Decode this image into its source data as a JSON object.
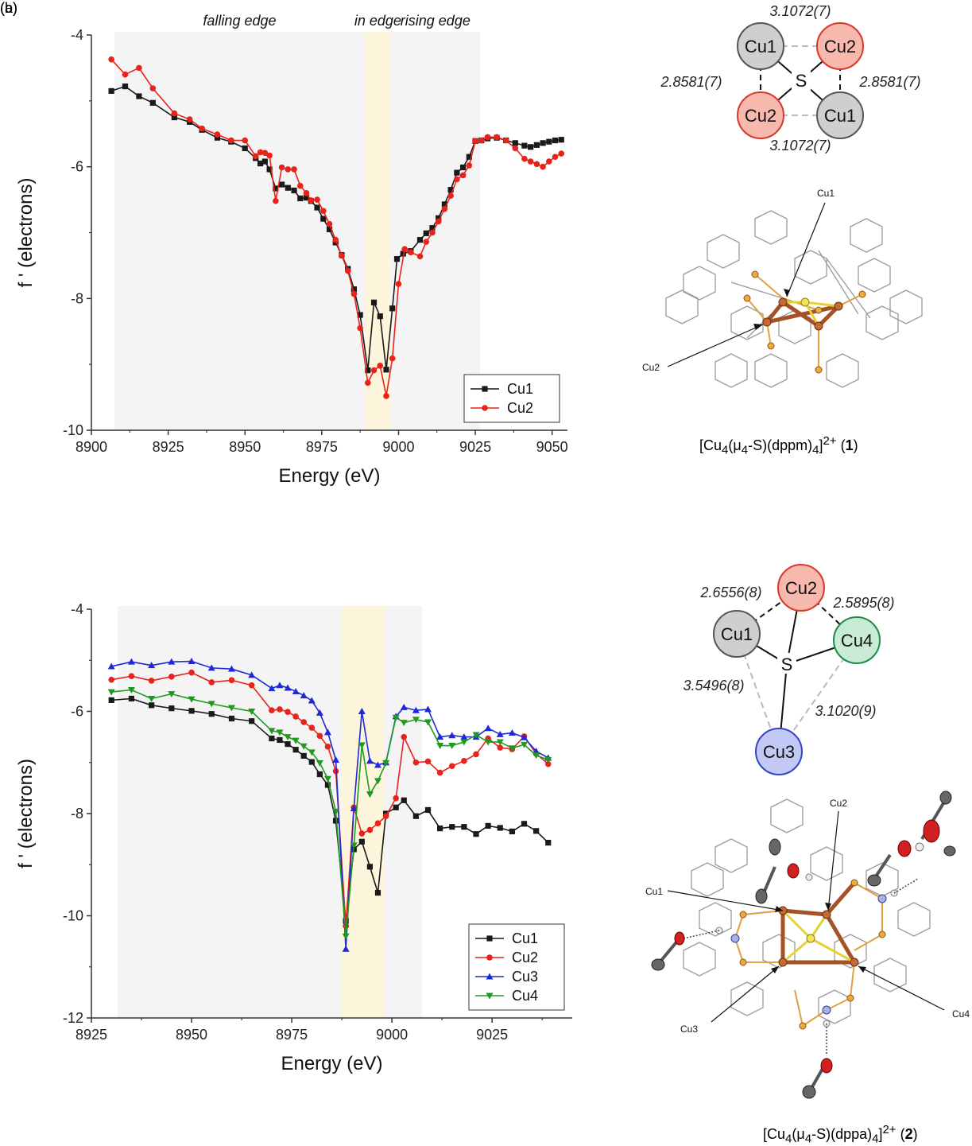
{
  "panel_labels": {
    "a": "(a)",
    "b": "(b)"
  },
  "colors": {
    "Cu1": "#1a1a1a",
    "Cu2": "#e8231c",
    "Cu3": "#1f28d6",
    "Cu4": "#1e9a1e",
    "band_gray": "#f4f4f4",
    "band_yellow": "#fdf6dc"
  },
  "chart_data": [
    {
      "type": "line",
      "panel": "a",
      "xlabel": "Energy (eV)",
      "ylabel": "f ' (electrons)",
      "xlim": [
        8900,
        9055
      ],
      "ylim": [
        -10,
        -4
      ],
      "xticks": [
        8900,
        8925,
        8950,
        8975,
        9000,
        9025,
        9050
      ],
      "yticks": [
        -10,
        -8,
        -6,
        -4
      ],
      "regions": [
        {
          "label": "falling edge",
          "x0": 8907.5,
          "x1": 8989,
          "color": "gray"
        },
        {
          "label": "in edge",
          "x0": 8989,
          "x1": 8997.5,
          "color": "yellow"
        },
        {
          "label": "rising edge",
          "x0": 8997.5,
          "x1": 9026.5,
          "color": "gray"
        }
      ],
      "legend_position": "bottom-right",
      "series": [
        {
          "name": "Cu1",
          "color": "#1a1a1a",
          "marker": "square",
          "x": [
            8906.5,
            8911,
            8915.5,
            8920,
            8927,
            8932,
            8936,
            8941,
            8945.5,
            8950,
            8953.5,
            8955,
            8956.5,
            8958,
            8960,
            8962,
            8964,
            8966,
            8968,
            8970,
            8971.5,
            8973.5,
            8975.5,
            8977.5,
            8979.5,
            8981.5,
            8983.5,
            8985.5,
            8987.5,
            8990,
            8992,
            8994,
            8996,
            8998,
            8999.5,
            9001.5,
            9004,
            9007,
            9009,
            9011,
            9013,
            9015,
            9017,
            9019,
            9021,
            9023,
            9025,
            9027,
            9029,
            9032,
            9035,
            9038,
            9041,
            9043,
            9045,
            9047,
            9049,
            9051,
            9053
          ],
          "y": [
            -4.85,
            -4.78,
            -4.93,
            -5.03,
            -5.25,
            -5.32,
            -5.44,
            -5.56,
            -5.62,
            -5.72,
            -5.87,
            -5.95,
            -5.92,
            -6.04,
            -6.33,
            -6.27,
            -6.32,
            -6.36,
            -6.48,
            -6.47,
            -6.52,
            -6.62,
            -6.79,
            -6.95,
            -7.15,
            -7.34,
            -7.55,
            -7.86,
            -8.25,
            -9.09,
            -8.06,
            -8.27,
            -9.08,
            -8.15,
            -7.4,
            -7.32,
            -7.28,
            -7.11,
            -7.01,
            -6.93,
            -6.78,
            -6.57,
            -6.35,
            -6.09,
            -6.01,
            -5.85,
            -5.61,
            -5.6,
            -5.57,
            -5.56,
            -5.6,
            -5.64,
            -5.68,
            -5.7,
            -5.67,
            -5.64,
            -5.62,
            -5.6,
            -5.59
          ]
        },
        {
          "name": "Cu2",
          "color": "#e8231c",
          "marker": "circle",
          "x": [
            8906.5,
            8911,
            8915.5,
            8920,
            8927,
            8932,
            8936,
            8941,
            8945.5,
            8950,
            8953.5,
            8955,
            8956.5,
            8958,
            8960,
            8962,
            8964,
            8966,
            8968,
            8970,
            8971.5,
            8973.5,
            8975.5,
            8977.5,
            8979.5,
            8981.5,
            8983.5,
            8985.5,
            8987.5,
            8990,
            8992,
            8994,
            8996,
            8998,
            9000,
            9002,
            9004,
            9007,
            9009,
            9011,
            9013,
            9015,
            9017,
            9019,
            9021,
            9023,
            9025,
            9027,
            9029,
            9032,
            9035,
            9038,
            9041,
            9043,
            9045,
            9047,
            9049,
            9051,
            9053
          ],
          "y": [
            -4.37,
            -4.6,
            -4.5,
            -4.81,
            -5.19,
            -5.28,
            -5.42,
            -5.51,
            -5.6,
            -5.6,
            -5.84,
            -5.78,
            -5.79,
            -5.83,
            -6.52,
            -6.01,
            -6.04,
            -6.04,
            -6.29,
            -6.4,
            -6.51,
            -6.5,
            -6.67,
            -6.87,
            -7.11,
            -7.35,
            -7.58,
            -7.93,
            -8.45,
            -9.28,
            -9.09,
            -9.02,
            -9.48,
            -8.91,
            -7.78,
            -7.25,
            -7.3,
            -7.36,
            -7.14,
            -7.0,
            -6.83,
            -6.64,
            -6.44,
            -6.19,
            -6.13,
            -5.98,
            -5.61,
            -5.6,
            -5.55,
            -5.55,
            -5.6,
            -5.72,
            -5.88,
            -5.92,
            -5.96,
            -6.0,
            -5.92,
            -5.85,
            -5.8
          ]
        }
      ]
    },
    {
      "type": "line",
      "panel": "b",
      "xlabel": "Energy (eV)",
      "ylabel": "f ' (electrons)",
      "xlim": [
        8925,
        9045
      ],
      "ylim": [
        -12,
        -4
      ],
      "xticks": [
        8925,
        8950,
        8975,
        9000,
        9025
      ],
      "yticks": [
        -12,
        -10,
        -8,
        -6,
        -4
      ],
      "regions": [
        {
          "label": "",
          "x0": 8931.5,
          "x1": 8987.5,
          "color": "gray"
        },
        {
          "label": "",
          "x0": 8987.5,
          "x1": 8998,
          "color": "yellow"
        },
        {
          "label": "",
          "x0": 8998,
          "x1": 9007.5,
          "color": "gray"
        }
      ],
      "legend_position": "bottom-right",
      "series": [
        {
          "name": "Cu1",
          "color": "#1a1a1a",
          "marker": "square",
          "x": [
            8930,
            8935,
            8940,
            8945,
            8950,
            8955,
            8960,
            8965,
            8970,
            8972,
            8974,
            8976,
            8978,
            8980,
            8982,
            8984,
            8986,
            8988.5,
            8990.5,
            8992.5,
            8994.5,
            8996.5,
            8998.5,
            9001,
            9003,
            9006,
            9009,
            9012,
            9015,
            9018,
            9021,
            9024,
            9027,
            9030,
            9033,
            9036,
            9039
          ],
          "y": [
            -5.78,
            -5.75,
            -5.88,
            -5.94,
            -5.99,
            -6.05,
            -6.14,
            -6.19,
            -6.53,
            -6.56,
            -6.64,
            -6.75,
            -6.87,
            -6.99,
            -7.23,
            -7.44,
            -8.14,
            -10.1,
            -8.7,
            -8.55,
            -9.04,
            -9.55,
            -8.0,
            -7.88,
            -7.74,
            -8.05,
            -7.93,
            -8.29,
            -8.26,
            -8.26,
            -8.4,
            -8.24,
            -8.28,
            -8.35,
            -8.2,
            -8.34,
            -8.57
          ]
        },
        {
          "name": "Cu2",
          "color": "#e8231c",
          "marker": "circle",
          "x": [
            8930,
            8935,
            8940,
            8945,
            8950,
            8955,
            8960,
            8965,
            8970,
            8972,
            8974,
            8976,
            8978,
            8980,
            8982,
            8984,
            8986,
            8988.5,
            8990.5,
            8992.5,
            8994.5,
            8996.5,
            8998.5,
            9001,
            9003,
            9006,
            9009,
            9012,
            9015,
            9018,
            9021,
            9024,
            9027,
            9030,
            9033,
            9036,
            9039
          ],
          "y": [
            -5.38,
            -5.31,
            -5.4,
            -5.32,
            -5.24,
            -5.43,
            -5.39,
            -5.49,
            -5.98,
            -5.96,
            -6.01,
            -6.1,
            -6.21,
            -6.32,
            -6.48,
            -6.69,
            -7.17,
            -10.2,
            -7.88,
            -8.39,
            -8.32,
            -8.19,
            -8.05,
            -7.7,
            -6.5,
            -7.0,
            -6.98,
            -7.2,
            -7.07,
            -6.97,
            -6.84,
            -6.53,
            -6.71,
            -6.74,
            -6.49,
            -6.83,
            -7.03
          ]
        },
        {
          "name": "Cu3",
          "color": "#1f28d6",
          "marker": "triangle-up",
          "x": [
            8930,
            8935,
            8940,
            8945,
            8950,
            8955,
            8960,
            8965,
            8970,
            8972,
            8974,
            8976,
            8978,
            8980,
            8982,
            8984,
            8986,
            8988.5,
            8990.5,
            8992.5,
            8994.5,
            8996.5,
            8998.5,
            9001,
            9003,
            9006,
            9009,
            9012,
            9015,
            9018,
            9021,
            9024,
            9027,
            9030,
            9033,
            9036,
            9039
          ],
          "y": [
            -5.12,
            -5.03,
            -5.1,
            -5.03,
            -5.02,
            -5.15,
            -5.17,
            -5.29,
            -5.55,
            -5.49,
            -5.54,
            -5.61,
            -5.69,
            -5.79,
            -6.03,
            -6.41,
            -6.95,
            -10.65,
            -7.9,
            -6.0,
            -6.97,
            -7.05,
            -7.0,
            -6.1,
            -5.92,
            -5.98,
            -5.96,
            -6.5,
            -6.47,
            -6.5,
            -6.5,
            -6.33,
            -6.45,
            -6.42,
            -6.51,
            -6.78,
            -6.91
          ]
        },
        {
          "name": "Cu4",
          "color": "#1e9a1e",
          "marker": "triangle-down",
          "x": [
            8930,
            8935,
            8940,
            8945,
            8950,
            8955,
            8960,
            8965,
            8970,
            8972,
            8974,
            8976,
            8978,
            8980,
            8982,
            8984,
            8986,
            8988.5,
            8990.5,
            8992.5,
            8994.5,
            8996.5,
            8998.5,
            9001,
            9003,
            9006,
            9009,
            9012,
            9015,
            9018,
            9021,
            9024,
            9027,
            9030,
            9033,
            9036,
            9039
          ],
          "y": [
            -5.62,
            -5.58,
            -5.75,
            -5.66,
            -5.76,
            -5.85,
            -5.93,
            -6.0,
            -6.38,
            -6.41,
            -6.5,
            -6.57,
            -6.68,
            -6.8,
            -7.01,
            -7.32,
            -7.96,
            -10.4,
            -8.62,
            -6.66,
            -7.62,
            -7.36,
            -7.01,
            -6.12,
            -6.22,
            -6.16,
            -6.21,
            -6.67,
            -6.67,
            -6.6,
            -6.46,
            -6.6,
            -6.6,
            -6.72,
            -6.65,
            -6.86,
            -6.95
          ]
        }
      ]
    }
  ],
  "schematic_1": {
    "atoms": [
      "Cu1",
      "Cu2",
      "Cu2",
      "Cu1"
    ],
    "center": "S",
    "distances": {
      "top": "3.1072(7)",
      "bottom": "3.1072(7)",
      "left": "2.8581(7)",
      "right": "2.8581(7)"
    }
  },
  "structure_1": {
    "labels": {
      "cu1": "Cu1",
      "cu2": "Cu2"
    },
    "caption": {
      "pre": "[Cu",
      "sub1": "4",
      "mid1": "(μ",
      "sub2": "4",
      "mid2": "-S)(dppm)",
      "sub3": "4",
      "mid3": "]",
      "sup": "2+",
      "mid4": " (",
      "bold": "1",
      "end": ")"
    }
  },
  "schematic_2": {
    "atoms": {
      "a1": "Cu1",
      "a2": "Cu2",
      "a3": "Cu3",
      "a4": "Cu4"
    },
    "center": "S",
    "distances": {
      "cu1_cu2": "2.6556(8)",
      "cu2_cu4": "2.5895(8)",
      "cu1_cu3": "3.5496(8)",
      "cu4_cu3": "3.1020(9)"
    }
  },
  "structure_2": {
    "labels": {
      "cu1": "Cu1",
      "cu2": "Cu2",
      "cu3": "Cu3",
      "cu4": "Cu4"
    },
    "caption": {
      "pre": "[Cu",
      "sub1": "4",
      "mid1": "(μ",
      "sub2": "4",
      "mid2": "-S)(dppa)",
      "sub3": "4",
      "mid3": "]",
      "sup": "2+",
      "mid4": " (",
      "bold": "2",
      "end": ")"
    }
  }
}
